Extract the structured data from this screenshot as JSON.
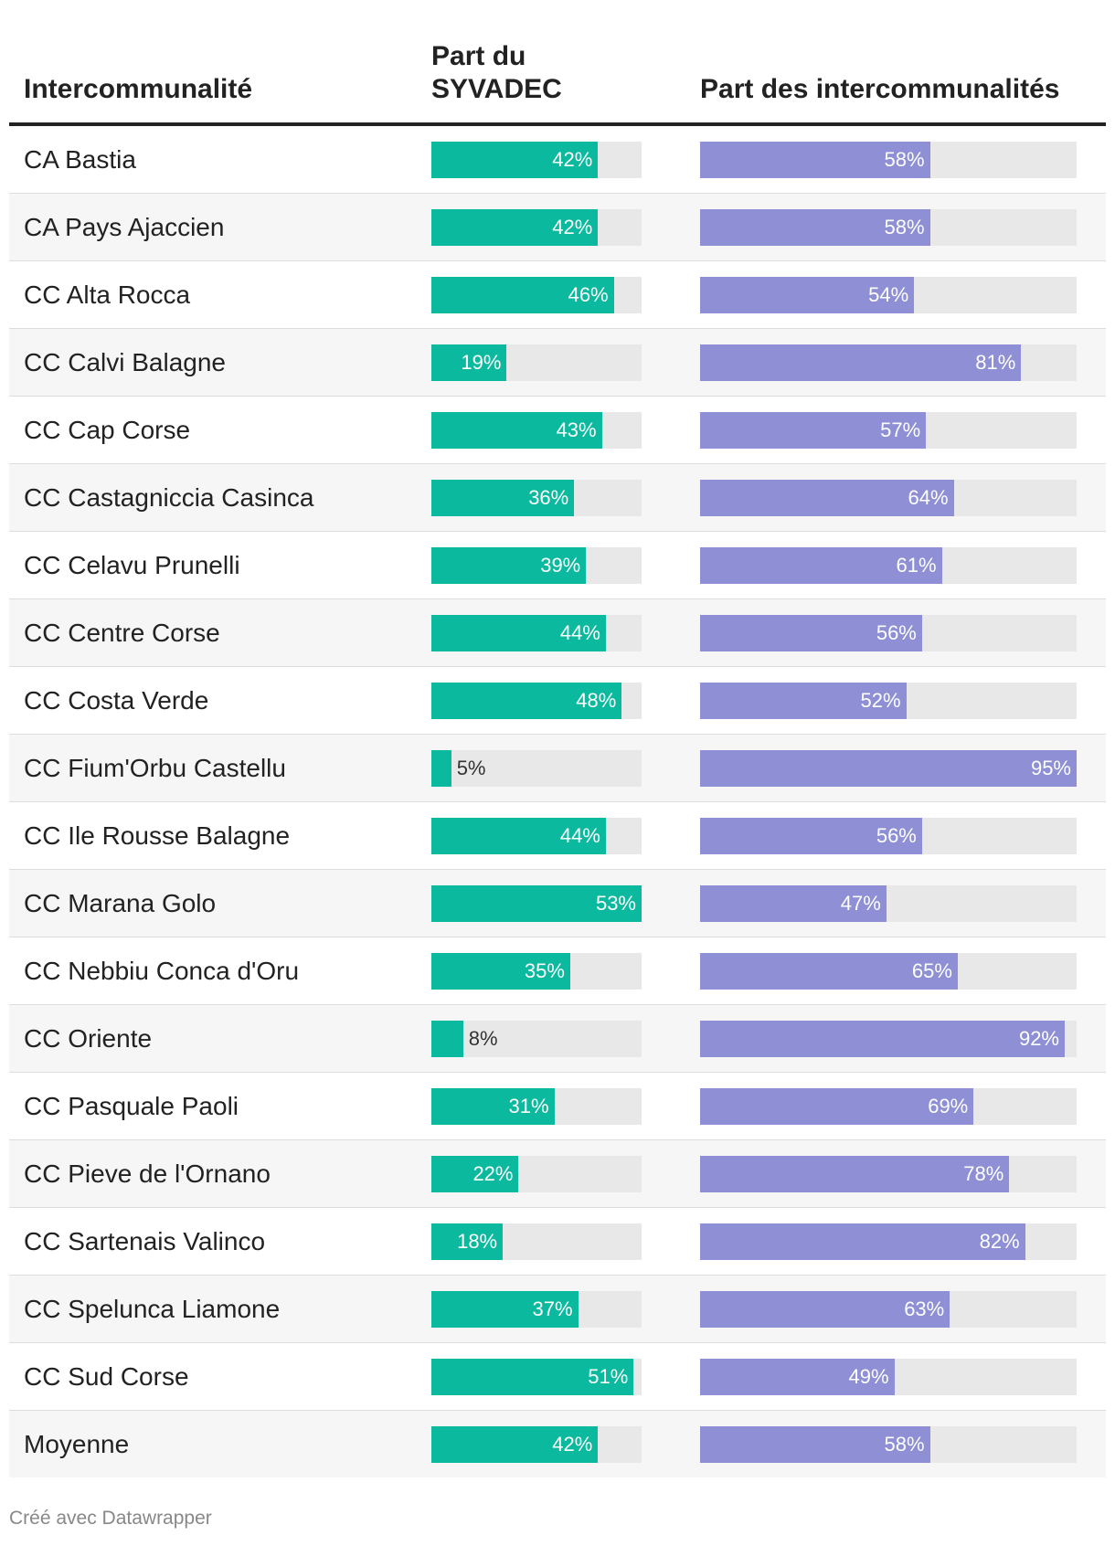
{
  "colors": {
    "syvadec": "#0ab99e",
    "intercommunalites": "#8e8fd4",
    "track": "#e8e8e8"
  },
  "header": {
    "col_name": "Intercommunalité",
    "col_syvadec": "Part du SYVADEC",
    "col_inter": "Part des intercommunalités"
  },
  "chart_data": {
    "type": "table",
    "columns": [
      "Intercommunalité",
      "Part du SYVADEC",
      "Part des intercommunalités"
    ],
    "rows": [
      {
        "name": "CA Bastia",
        "syvadec": 42,
        "inter": 58
      },
      {
        "name": "CA Pays Ajaccien",
        "syvadec": 42,
        "inter": 58
      },
      {
        "name": "CC Alta Rocca",
        "syvadec": 46,
        "inter": 54
      },
      {
        "name": "CC Calvi Balagne",
        "syvadec": 19,
        "inter": 81
      },
      {
        "name": "CC Cap Corse",
        "syvadec": 43,
        "inter": 57
      },
      {
        "name": "CC Castagniccia Casinca",
        "syvadec": 36,
        "inter": 64
      },
      {
        "name": "CC Celavu Prunelli",
        "syvadec": 39,
        "inter": 61
      },
      {
        "name": "CC Centre Corse",
        "syvadec": 44,
        "inter": 56
      },
      {
        "name": "CC Costa Verde",
        "syvadec": 48,
        "inter": 52
      },
      {
        "name": "CC Fium'Orbu Castellu",
        "syvadec": 5,
        "inter": 95
      },
      {
        "name": "CC Ile Rousse Balagne",
        "syvadec": 44,
        "inter": 56
      },
      {
        "name": "CC Marana Golo",
        "syvadec": 53,
        "inter": 47
      },
      {
        "name": "CC Nebbiu Conca d'Oru",
        "syvadec": 35,
        "inter": 65
      },
      {
        "name": "CC Oriente",
        "syvadec": 8,
        "inter": 92
      },
      {
        "name": "CC Pasquale Paoli",
        "syvadec": 31,
        "inter": 69
      },
      {
        "name": "CC Pieve de l'Ornano",
        "syvadec": 22,
        "inter": 78
      },
      {
        "name": "CC Sartenais Valinco",
        "syvadec": 18,
        "inter": 82
      },
      {
        "name": "CC Spelunca Liamone",
        "syvadec": 37,
        "inter": 63
      },
      {
        "name": "CC Sud Corse",
        "syvadec": 51,
        "inter": 49
      },
      {
        "name": "Moyenne",
        "syvadec": 42,
        "inter": 58
      }
    ],
    "syvadec_max": 53,
    "inter_max": 95,
    "unit": "%"
  },
  "footer": {
    "credit": "Créé avec Datawrapper"
  }
}
